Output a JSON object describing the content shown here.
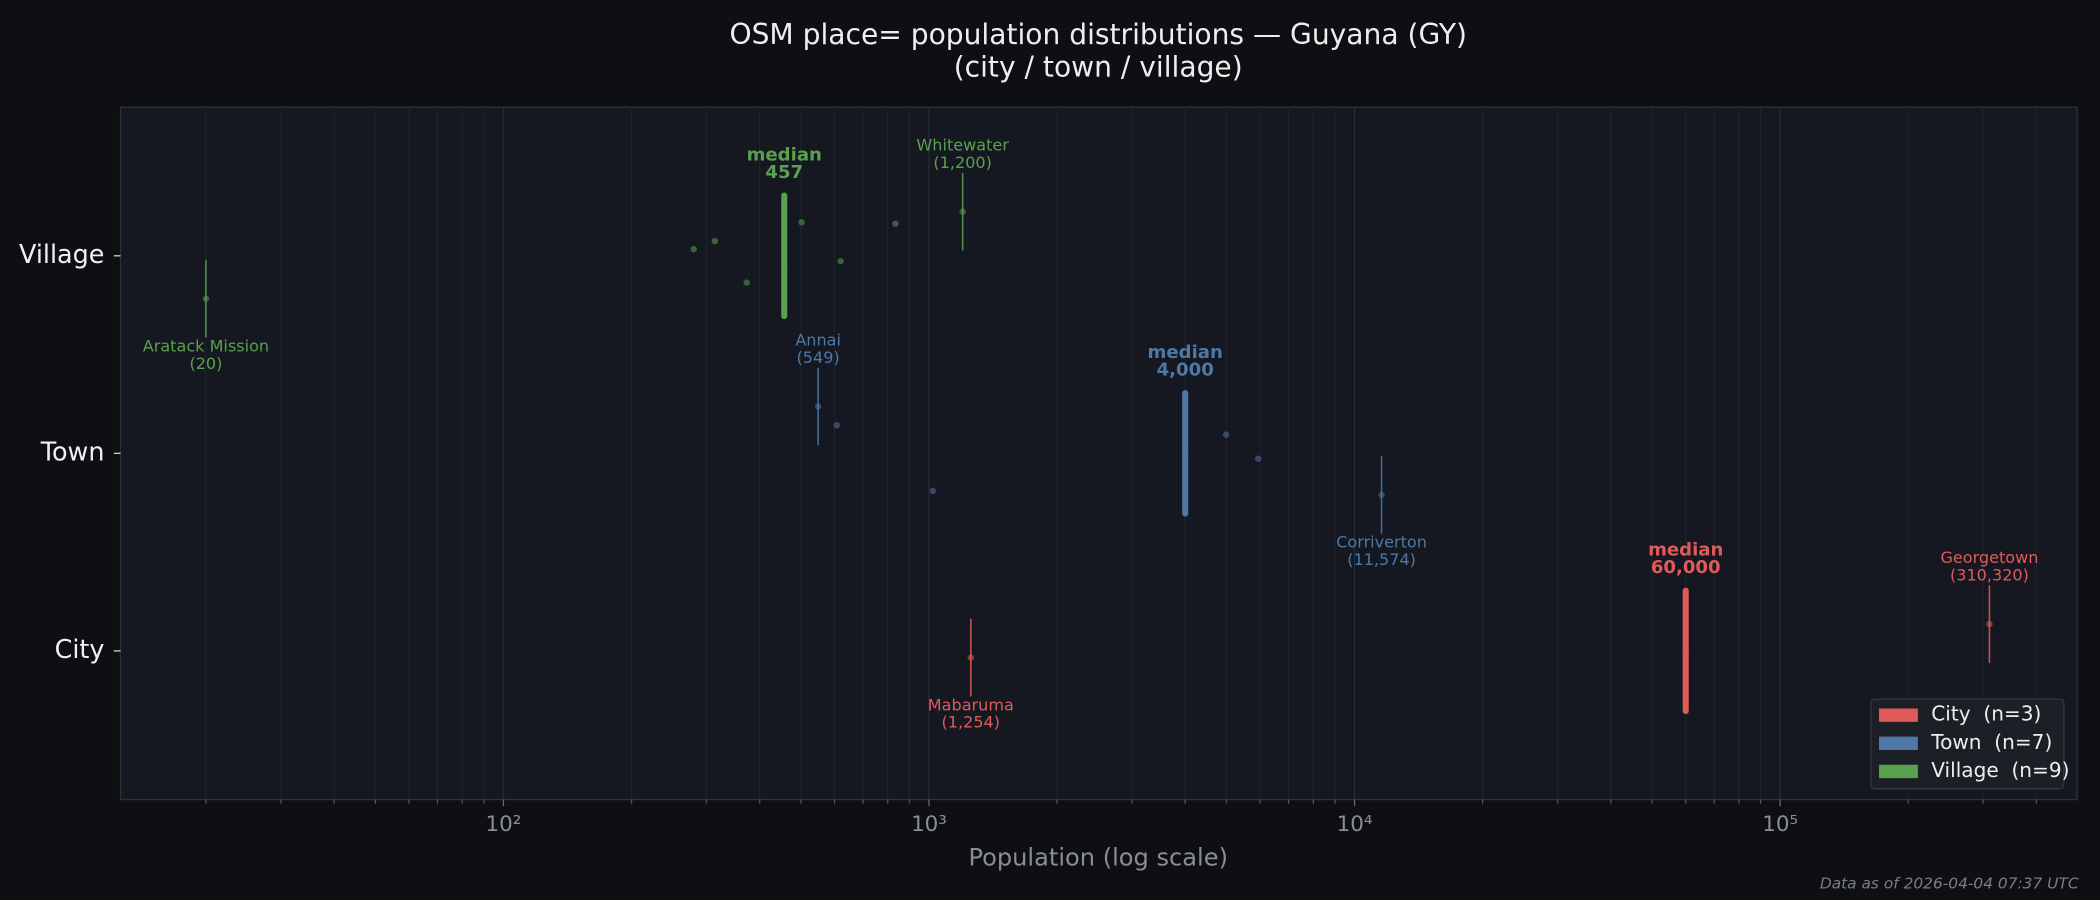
{
  "chart_data": {
    "type": "strip",
    "title": "OSM place= population distributions — Guyana (GY)",
    "subtitle": "(city / town / village)",
    "xlabel": "Population (log scale)",
    "footnote": "Data as of 2026-04-04 07:37 UTC",
    "log_x": true,
    "grid": true,
    "legend": "lower right",
    "categories": [
      "City",
      "Town",
      "Village"
    ],
    "median_text": "median",
    "xlim": [
      12.6,
      499000
    ],
    "xticks": [
      {
        "value": 100,
        "label": "10²"
      },
      {
        "value": 1000,
        "label": "10³"
      },
      {
        "value": 10000,
        "label": "10⁴"
      },
      {
        "value": 100000,
        "label": "10⁵"
      }
    ],
    "xminor": [
      20,
      30,
      40,
      50,
      60,
      70,
      80,
      90,
      200,
      300,
      400,
      500,
      600,
      700,
      800,
      900,
      2000,
      3000,
      4000,
      5000,
      6000,
      7000,
      8000,
      9000,
      20000,
      30000,
      40000,
      50000,
      60000,
      70000,
      80000,
      90000,
      200000,
      300000,
      400000
    ],
    "series": [
      {
        "name": "City  (n=3)",
        "color": "#e05a5a",
        "values": [
          1254,
          60000,
          310320
        ],
        "point_labels": [
          "Mabaruma",
          null,
          "Georgetown"
        ],
        "value_labels": [
          "(1,254)",
          null,
          "(310,320)"
        ],
        "median": 60000,
        "median_label": "60,000"
      },
      {
        "name": "Town  (n=7)",
        "color": "#4e79a7",
        "values": [
          549,
          607,
          1021,
          4000,
          4990,
          5940,
          11574
        ],
        "point_labels": [
          "Annai",
          null,
          null,
          null,
          null,
          null,
          "Corriverton"
        ],
        "value_labels": [
          "(549)",
          null,
          null,
          null,
          null,
          null,
          "(11,574)"
        ],
        "median": 4000,
        "median_label": "4,000"
      },
      {
        "name": "Village  (n=9)",
        "color": "#59a14f",
        "values": [
          20,
          280,
          314,
          373,
          457,
          502,
          620,
          834,
          1200
        ],
        "point_labels": [
          "Aratack Mission",
          null,
          null,
          null,
          null,
          null,
          null,
          null,
          "Whitewater"
        ],
        "value_labels": [
          "(20)",
          null,
          null,
          null,
          null,
          null,
          null,
          null,
          "(1,200)"
        ],
        "median": 457,
        "median_label": "457"
      }
    ]
  }
}
